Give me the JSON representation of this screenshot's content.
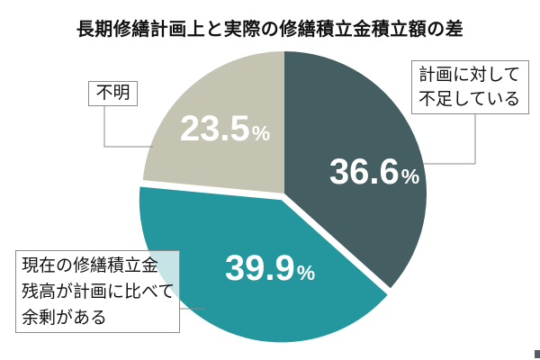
{
  "title": "長期修繕計画上と実際の修繕積立金積立額の差",
  "chart_data": {
    "type": "pie",
    "title": "長期修繕計画上と実際の修繕積立金積立額の差",
    "start_angle": "top",
    "direction": "clockwise",
    "total": 100,
    "slices": [
      {
        "label": "計画に対して不足している",
        "value": 36.6,
        "display": "36.6",
        "unit": "%",
        "color": "#455e61",
        "exploded": false
      },
      {
        "label": "現在の修繕積立金残高が計画に比べて余剰がある",
        "value": 39.9,
        "display": "39.9",
        "unit": "%",
        "color": "#23969e",
        "exploded": true
      },
      {
        "label": "不明",
        "value": 23.5,
        "display": "23.5",
        "unit": "%",
        "color": "#c5c4b2",
        "exploded": false
      }
    ]
  },
  "callouts": {
    "right": {
      "lines": [
        "計画に対して",
        "不足している"
      ]
    },
    "left": {
      "text": "不明"
    },
    "bottom_left": {
      "lines": [
        "現在の修繕積立金",
        "残高が計画に比べて",
        "余剰がある"
      ]
    }
  }
}
